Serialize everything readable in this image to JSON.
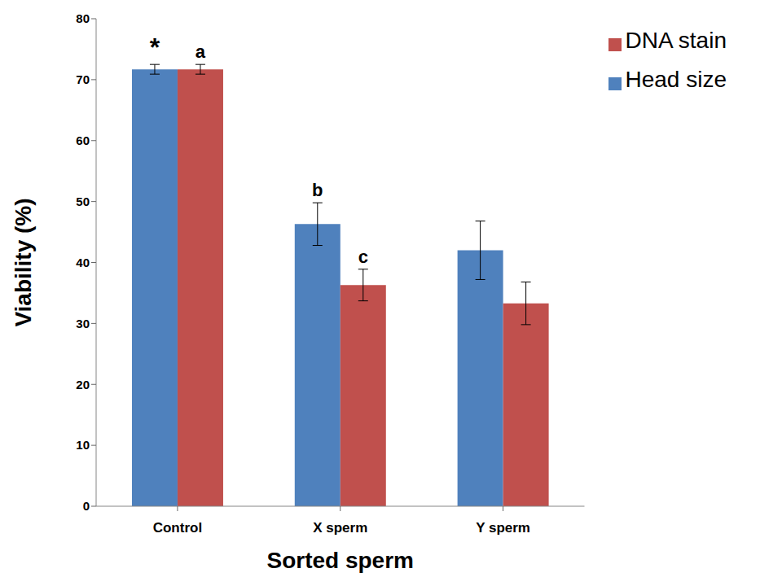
{
  "chart_data": {
    "type": "bar",
    "categories": [
      "Control",
      "X sperm",
      "Y sperm"
    ],
    "x_label": "Sorted sperm",
    "y_label": "Viability (%)",
    "ylim": [
      0,
      80
    ],
    "yticks": [
      0,
      10,
      20,
      30,
      40,
      50,
      60,
      70,
      80
    ],
    "grid": false,
    "legend": "upper right",
    "series": [
      {
        "name": "Head size",
        "color": "#4F81BD",
        "values": [
          71.7,
          46.3,
          42.0
        ],
        "errors": [
          0.8,
          3.5,
          4.8
        ],
        "annotations": [
          "*",
          "b",
          null
        ]
      },
      {
        "name": "DNA stain",
        "color": "#C0504D",
        "values": [
          71.7,
          36.3,
          33.3
        ],
        "errors": [
          0.8,
          2.6,
          3.5
        ],
        "annotations": [
          "a",
          "c",
          null
        ]
      }
    ]
  }
}
